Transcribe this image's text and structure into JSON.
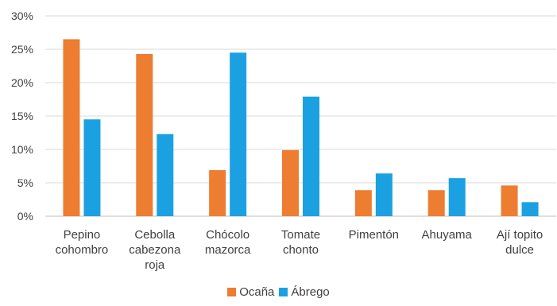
{
  "chart_data": {
    "type": "bar",
    "categories": [
      [
        "Pepino",
        "cohombro"
      ],
      [
        "Cebolla",
        "cabezona",
        "roja"
      ],
      [
        "Chócolo",
        "mazorca"
      ],
      [
        "Tomate",
        "chonto"
      ],
      [
        "Pimentón"
      ],
      [
        "Ahuyama"
      ],
      [
        "Ají topito",
        "dulce"
      ]
    ],
    "series": [
      {
        "name": "Ocaña",
        "color": "#ED7D31",
        "values": [
          26.5,
          24.3,
          6.9,
          9.9,
          3.9,
          3.9,
          4.6
        ]
      },
      {
        "name": "Ábrego",
        "color": "#1BA1E2",
        "values": [
          14.5,
          12.3,
          24.5,
          17.9,
          6.4,
          5.7,
          2.1
        ]
      }
    ],
    "yticks": [
      "0%",
      "5%",
      "10%",
      "15%",
      "20%",
      "25%",
      "30%"
    ],
    "ylim": [
      0,
      30
    ],
    "grid": true,
    "legend_position": "bottom"
  }
}
